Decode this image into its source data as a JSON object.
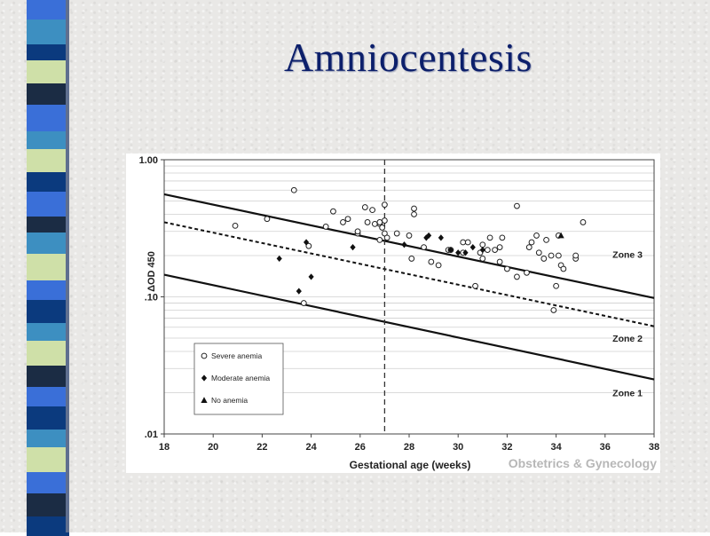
{
  "slide": {
    "title": "Amniocentesis",
    "accent_colors": [
      "#3a6fd8",
      "#0b3a7e",
      "#cfe0a8",
      "#3d8fc1",
      "#1b2c44"
    ]
  },
  "chart_data": {
    "type": "scatter",
    "xlabel": "Gestational age (weeks)",
    "ylabel": "ΔOD 450",
    "xlim": [
      18,
      38
    ],
    "ylim": [
      0.01,
      1.0
    ],
    "y_scale": "log",
    "x_ticks": [
      "18",
      "20",
      "22",
      "24",
      "26",
      "28",
      "30",
      "32",
      "34",
      "36",
      "38"
    ],
    "y_ticks": [
      "1.00",
      ".10",
      ".01"
    ],
    "grid": true,
    "watermark": "Obstetrics & Gynecology",
    "divider_week": 27,
    "zones": [
      "Zone 3",
      "Zone 2",
      "Zone 1"
    ],
    "boundary_lines": [
      {
        "style": "solid",
        "points": [
          [
            18,
            0.56
          ],
          [
            38,
            0.098
          ]
        ]
      },
      {
        "style": "dashed",
        "points": [
          [
            18,
            0.35
          ],
          [
            38,
            0.061
          ]
        ]
      },
      {
        "style": "solid",
        "points": [
          [
            18,
            0.145
          ],
          [
            38,
            0.025
          ]
        ]
      }
    ],
    "legend": {
      "position": "bottom-left",
      "entries": [
        "Severe anemia",
        "Moderate anemia",
        "No anemia"
      ]
    },
    "series": [
      {
        "name": "Severe anemia",
        "marker": "open-circle",
        "points": [
          [
            20.9,
            0.33
          ],
          [
            22.2,
            0.37
          ],
          [
            23.3,
            0.6
          ],
          [
            23.7,
            0.09
          ],
          [
            23.9,
            0.235
          ],
          [
            24.6,
            0.325
          ],
          [
            24.9,
            0.42
          ],
          [
            25.3,
            0.35
          ],
          [
            25.5,
            0.37
          ],
          [
            25.9,
            0.29
          ],
          [
            25.9,
            0.3
          ],
          [
            26.2,
            0.45
          ],
          [
            26.3,
            0.35
          ],
          [
            26.5,
            0.43
          ],
          [
            26.6,
            0.34
          ],
          [
            26.8,
            0.34
          ],
          [
            26.8,
            0.35
          ],
          [
            26.8,
            0.26
          ],
          [
            26.9,
            0.32
          ],
          [
            27.0,
            0.29
          ],
          [
            27.0,
            0.36
          ],
          [
            27.0,
            0.47
          ],
          [
            27.1,
            0.27
          ],
          [
            27.5,
            0.29
          ],
          [
            28.0,
            0.28
          ],
          [
            28.1,
            0.19
          ],
          [
            28.2,
            0.44
          ],
          [
            28.2,
            0.4
          ],
          [
            28.6,
            0.23
          ],
          [
            28.9,
            0.18
          ],
          [
            29.2,
            0.17
          ],
          [
            29.6,
            0.22
          ],
          [
            29.7,
            0.22
          ],
          [
            30.2,
            0.25
          ],
          [
            30.2,
            0.21
          ],
          [
            30.4,
            0.25
          ],
          [
            30.7,
            0.12
          ],
          [
            30.9,
            0.21
          ],
          [
            31.0,
            0.19
          ],
          [
            31.0,
            0.24
          ],
          [
            31.2,
            0.22
          ],
          [
            31.3,
            0.27
          ],
          [
            31.5,
            0.22
          ],
          [
            31.7,
            0.18
          ],
          [
            31.7,
            0.23
          ],
          [
            31.8,
            0.27
          ],
          [
            32.0,
            0.16
          ],
          [
            32.4,
            0.14
          ],
          [
            32.4,
            0.46
          ],
          [
            32.8,
            0.15
          ],
          [
            32.9,
            0.23
          ],
          [
            33.0,
            0.25
          ],
          [
            33.2,
            0.28
          ],
          [
            33.3,
            0.21
          ],
          [
            33.5,
            0.19
          ],
          [
            33.6,
            0.26
          ],
          [
            33.8,
            0.2
          ],
          [
            33.9,
            0.08
          ],
          [
            34.0,
            0.12
          ],
          [
            34.1,
            0.28
          ],
          [
            34.1,
            0.2
          ],
          [
            34.2,
            0.17
          ],
          [
            34.3,
            0.16
          ],
          [
            34.8,
            0.19
          ],
          [
            34.8,
            0.2
          ],
          [
            35.1,
            0.35
          ]
        ]
      },
      {
        "name": "Moderate anemia",
        "marker": "filled-diamond",
        "points": [
          [
            22.7,
            0.19
          ],
          [
            23.5,
            0.11
          ],
          [
            23.8,
            0.25
          ],
          [
            24.0,
            0.14
          ],
          [
            25.7,
            0.23
          ],
          [
            27.8,
            0.24
          ],
          [
            28.7,
            0.27
          ],
          [
            28.8,
            0.28
          ],
          [
            29.3,
            0.27
          ],
          [
            29.7,
            0.22
          ],
          [
            30.0,
            0.21
          ],
          [
            30.3,
            0.21
          ],
          [
            30.6,
            0.23
          ],
          [
            31.0,
            0.22
          ]
        ]
      },
      {
        "name": "No anemia",
        "marker": "filled-triangle",
        "points": [
          [
            34.2,
            0.28
          ]
        ]
      }
    ]
  }
}
